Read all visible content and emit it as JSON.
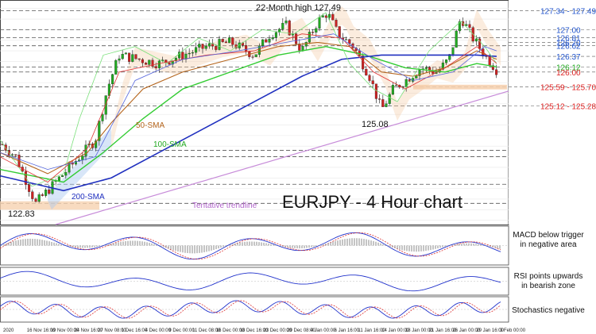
{
  "title": "EURJPY - 4 Hour chart",
  "chart_data": {
    "type": "candlestick",
    "symbol": "EURJPY",
    "timeframe": "4 Hour",
    "x_ticks": [
      "2020",
      "16 Nov 16:00",
      "19 Nov 00:00",
      "24 Nov 16:00",
      "27 Nov 08:00",
      "1 Dec 16:00",
      "4 Dec 00:00",
      "9 Dec 00:00",
      "11 Dec 08:00",
      "16 Dec 00:00",
      "18 Dec 16:00",
      "23 Dec 00:00",
      "29 Dec 08:00",
      "4 Jan 00:00",
      "6 Jan 16:00",
      "11 Jan 16:00",
      "14 Jan 00:00",
      "18 Jan 00:00",
      "21 Jan 16:00",
      "26 Jan 00:00",
      "29 Jan 16:00",
      "3 Feb 00:00"
    ],
    "price_ylim": [
      122.4,
      127.7
    ],
    "annotations": {
      "high_label": "22-Month high 127.49",
      "low_label": "125.08",
      "left_low_label": "122.83",
      "sma50_label": "50-SMA",
      "sma100_label": "100-SMA",
      "sma200_label": "200-SMA",
      "trendline_label": "Tentative trendline"
    },
    "levels": [
      {
        "label": "127.34 - 127.49",
        "value": 127.45,
        "color": "#2255cc"
      },
      {
        "label": "127.00",
        "value": 127.0,
        "color": "#2255cc"
      },
      {
        "label": "126.81",
        "value": 126.81,
        "color": "#2255cc"
      },
      {
        "label": "126.70",
        "value": 126.7,
        "color": "#2255cc"
      },
      {
        "label": "126.62",
        "value": 126.62,
        "color": "#2255cc"
      },
      {
        "label": "126.37",
        "value": 126.37,
        "color": "#2255cc"
      },
      {
        "label": "126.12",
        "value": 126.12,
        "color": "#22aa22"
      },
      {
        "label": "126.00",
        "value": 126.0,
        "color": "#dd2222"
      },
      {
        "label": "125.59 - 125.70",
        "value": 125.65,
        "color": "#dd2222"
      },
      {
        "label": "125.12 - 125.28",
        "value": 125.2,
        "color": "#dd2222"
      }
    ],
    "indicators": [
      {
        "name": "MACD",
        "note": "MACD below trigger\nin negative area"
      },
      {
        "name": "RSI",
        "note": "RSI points upwards\nin bearish zone"
      },
      {
        "name": "Stochastics",
        "note": "Stochastics negative"
      }
    ],
    "colors": {
      "candle_up": "#22aa22",
      "candle_down": "#cc2222",
      "sma50": "#b5651d",
      "sma100": "#33cc33",
      "sma200": "#1f2fbf",
      "trendline": "#c78bd9",
      "support_zone": "#f6d2b0",
      "cloud": "#f4c9a0"
    }
  }
}
